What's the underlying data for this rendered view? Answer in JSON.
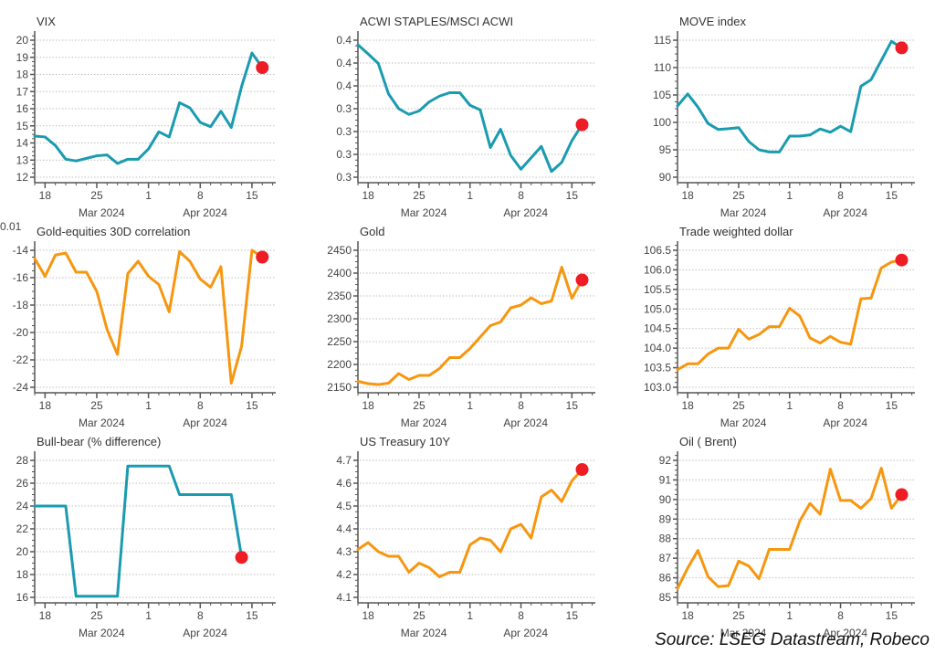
{
  "source": "Source: LSEG Datastream, Robeco",
  "colors": {
    "teal": "#1a9bb0",
    "orange": "#f7960f",
    "dot": "#ee1c25"
  },
  "x_dates": [
    "Mar 15",
    "Mar 18",
    "Mar 19",
    "Mar 20",
    "Mar 21",
    "Mar 22",
    "Mar 25",
    "Mar 26",
    "Mar 27",
    "Mar 28",
    "Mar 29",
    "Apr 1",
    "Apr 2",
    "Apr 3",
    "Apr 4",
    "Apr 5",
    "Apr 8",
    "Apr 9",
    "Apr 10",
    "Apr 11",
    "Apr 12",
    "Apr 15",
    "Apr 16"
  ],
  "x_ticks": [
    "18",
    "25",
    "1",
    "8",
    "15"
  ],
  "x_months": [
    "Mar 2024",
    "Apr 2024"
  ],
  "stray_label": "0.01",
  "chart_data": [
    {
      "type": "line",
      "title": "VIX",
      "color": "teal",
      "ylim": [
        12,
        20
      ],
      "yticks": [
        "12",
        "13",
        "14",
        "15",
        "16",
        "17",
        "18",
        "19",
        "20"
      ],
      "ytick_values": [
        12,
        13,
        14,
        15,
        16,
        17,
        18,
        19,
        20
      ],
      "values": [
        14.4,
        14.35,
        13.85,
        13.05,
        12.95,
        13.1,
        13.25,
        13.3,
        12.8,
        13.05,
        13.05,
        13.65,
        14.65,
        14.35,
        16.35,
        16.05,
        15.2,
        14.95,
        15.85,
        14.9,
        17.3,
        19.25,
        18.4
      ],
      "highlight_last": true
    },
    {
      "type": "line",
      "title": "ACWI STAPLES/MSCI ACWI",
      "color": "teal",
      "ylim": [
        0,
        6
      ],
      "yticks": [
        "0.3",
        "0.3",
        "0.3",
        "0.3",
        "0.4",
        "0.4",
        "0.4"
      ],
      "ytick_values": [
        0,
        1,
        2,
        3,
        4,
        5,
        6
      ],
      "values": [
        5.8,
        5.4,
        4.98,
        3.65,
        3.0,
        2.75,
        2.9,
        3.3,
        3.55,
        3.7,
        3.7,
        3.15,
        2.95,
        1.3,
        2.1,
        0.95,
        0.35,
        0.85,
        1.35,
        0.25,
        0.65,
        1.6,
        2.3
      ],
      "highlight_last": true
    },
    {
      "type": "line",
      "title": "MOVE index",
      "color": "teal",
      "ylim": [
        90,
        115
      ],
      "yticks": [
        "90",
        "95",
        "100",
        "105",
        "110",
        "115"
      ],
      "ytick_values": [
        90,
        95,
        100,
        105,
        110,
        115
      ],
      "values": [
        103,
        105.2,
        102.8,
        99.8,
        98.7,
        98.85,
        99.05,
        96.5,
        95.0,
        94.6,
        94.6,
        97.5,
        97.5,
        97.7,
        98.8,
        98.2,
        99.3,
        98.3,
        106.6,
        107.8,
        111.3,
        114.8,
        113.6
      ],
      "highlight_last": true
    },
    {
      "type": "line",
      "title": "Gold-equities 30D correlation",
      "color": "orange",
      "ylim": [
        -24,
        -14
      ],
      "yticks": [
        "-24",
        "-22",
        "-20",
        "-18",
        "-16",
        "-14"
      ],
      "ytick_values": [
        -24,
        -22,
        -20,
        -18,
        -16,
        -14
      ],
      "values": [
        -14.6,
        -15.9,
        -14.35,
        -14.2,
        -15.6,
        -15.6,
        -17.0,
        -19.8,
        -21.6,
        -15.7,
        -14.8,
        -15.9,
        -16.5,
        -18.5,
        -14.1,
        -14.8,
        -16.1,
        -16.7,
        -15.2,
        -23.7,
        -21.0,
        -14.0,
        -14.5
      ],
      "highlight_last": true
    },
    {
      "type": "line",
      "title": "Gold",
      "color": "orange",
      "ylim": [
        2150,
        2450
      ],
      "yticks": [
        "2150",
        "2200",
        "2250",
        "2300",
        "2350",
        "2400",
        "2450"
      ],
      "ytick_values": [
        2150,
        2200,
        2250,
        2300,
        2350,
        2400,
        2450
      ],
      "values": [
        2163,
        2158,
        2156,
        2159,
        2180,
        2167,
        2176,
        2176,
        2191,
        2215,
        2215,
        2235,
        2260,
        2285,
        2293,
        2324,
        2330,
        2346,
        2333,
        2339,
        2413,
        2345,
        2385
      ],
      "highlight_last": true
    },
    {
      "type": "line",
      "title": "Trade weighted dollar",
      "color": "orange",
      "ylim": [
        103.0,
        106.5
      ],
      "yticks": [
        "103.0",
        "103.5",
        "104.0",
        "104.5",
        "105.0",
        "105.5",
        "106.0",
        "106.5"
      ],
      "ytick_values": [
        103.0,
        103.5,
        104.0,
        104.5,
        105.0,
        105.5,
        106.0,
        106.5
      ],
      "values": [
        103.45,
        103.6,
        103.6,
        103.85,
        104.0,
        104.0,
        104.48,
        104.23,
        104.35,
        104.55,
        104.55,
        105.02,
        104.82,
        104.26,
        104.13,
        104.3,
        104.15,
        104.1,
        105.26,
        105.28,
        106.05,
        106.2,
        106.25
      ],
      "highlight_last": true
    },
    {
      "type": "line",
      "title": "Bull-bear (% difference)",
      "color": "teal",
      "ylim": [
        16,
        28
      ],
      "yticks": [
        "16",
        "18",
        "20",
        "22",
        "24",
        "26",
        "28"
      ],
      "ytick_values": [
        16,
        18,
        20,
        22,
        24,
        26,
        28
      ],
      "values": [
        24.0,
        24.0,
        24.0,
        24.0,
        16.1,
        16.1,
        16.1,
        16.1,
        16.1,
        27.5,
        27.5,
        27.5,
        27.5,
        27.5,
        25.0,
        25.0,
        25.0,
        25.0,
        25.0,
        25.0,
        19.5,
        null,
        null
      ],
      "step_points": [
        [
          0,
          24.0
        ],
        [
          3,
          24.0
        ],
        [
          4,
          16.1
        ],
        [
          8,
          16.1
        ],
        [
          9,
          27.5
        ],
        [
          13,
          27.5
        ],
        [
          14,
          25.0
        ],
        [
          19,
          25.0
        ],
        [
          20,
          19.5
        ]
      ],
      "highlight_last": true
    },
    {
      "type": "line",
      "title": "US Treasury 10Y",
      "color": "orange",
      "ylim": [
        4.1,
        4.7
      ],
      "yticks": [
        "4.1",
        "4.2",
        "4.3",
        "4.4",
        "4.5",
        "4.6",
        "4.7"
      ],
      "ytick_values": [
        4.1,
        4.2,
        4.3,
        4.4,
        4.5,
        4.6,
        4.7
      ],
      "values": [
        4.31,
        4.34,
        4.3,
        4.28,
        4.28,
        4.21,
        4.25,
        4.23,
        4.19,
        4.21,
        4.21,
        4.33,
        4.36,
        4.35,
        4.3,
        4.4,
        4.42,
        4.36,
        4.54,
        4.57,
        4.52,
        4.61,
        4.66
      ],
      "highlight_last": true
    },
    {
      "type": "line",
      "title": "Oil ( Brent)",
      "color": "orange",
      "ylim": [
        85,
        92
      ],
      "yticks": [
        "85",
        "86",
        "87",
        "88",
        "89",
        "90",
        "91",
        "92"
      ],
      "ytick_values": [
        85,
        86,
        87,
        88,
        89,
        90,
        91,
        92
      ],
      "values": [
        85.45,
        86.5,
        87.4,
        86.05,
        85.55,
        85.6,
        86.85,
        86.6,
        85.95,
        87.45,
        87.45,
        87.45,
        88.9,
        89.8,
        89.25,
        91.55,
        89.95,
        89.95,
        89.55,
        90.05,
        91.6,
        89.55,
        90.25
      ],
      "highlight_last": true
    }
  ]
}
